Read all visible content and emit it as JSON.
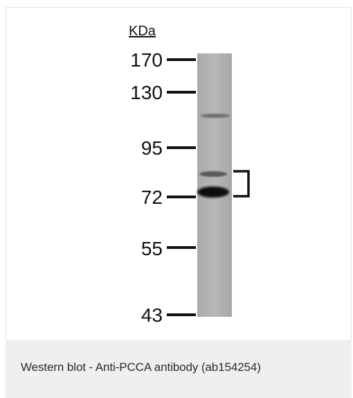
{
  "blot": {
    "unit_label": "KDa",
    "markers": [
      "170",
      "130",
      "95",
      "72",
      "55",
      "43"
    ]
  },
  "caption": {
    "text": "Western blot - Anti-PCCA antibody (ab154254)"
  },
  "colors": {
    "caption_background": "#eef0f0",
    "lane_background": "#b0b0b0",
    "band": "#0a0a0a",
    "text": "#2b2b2b"
  }
}
